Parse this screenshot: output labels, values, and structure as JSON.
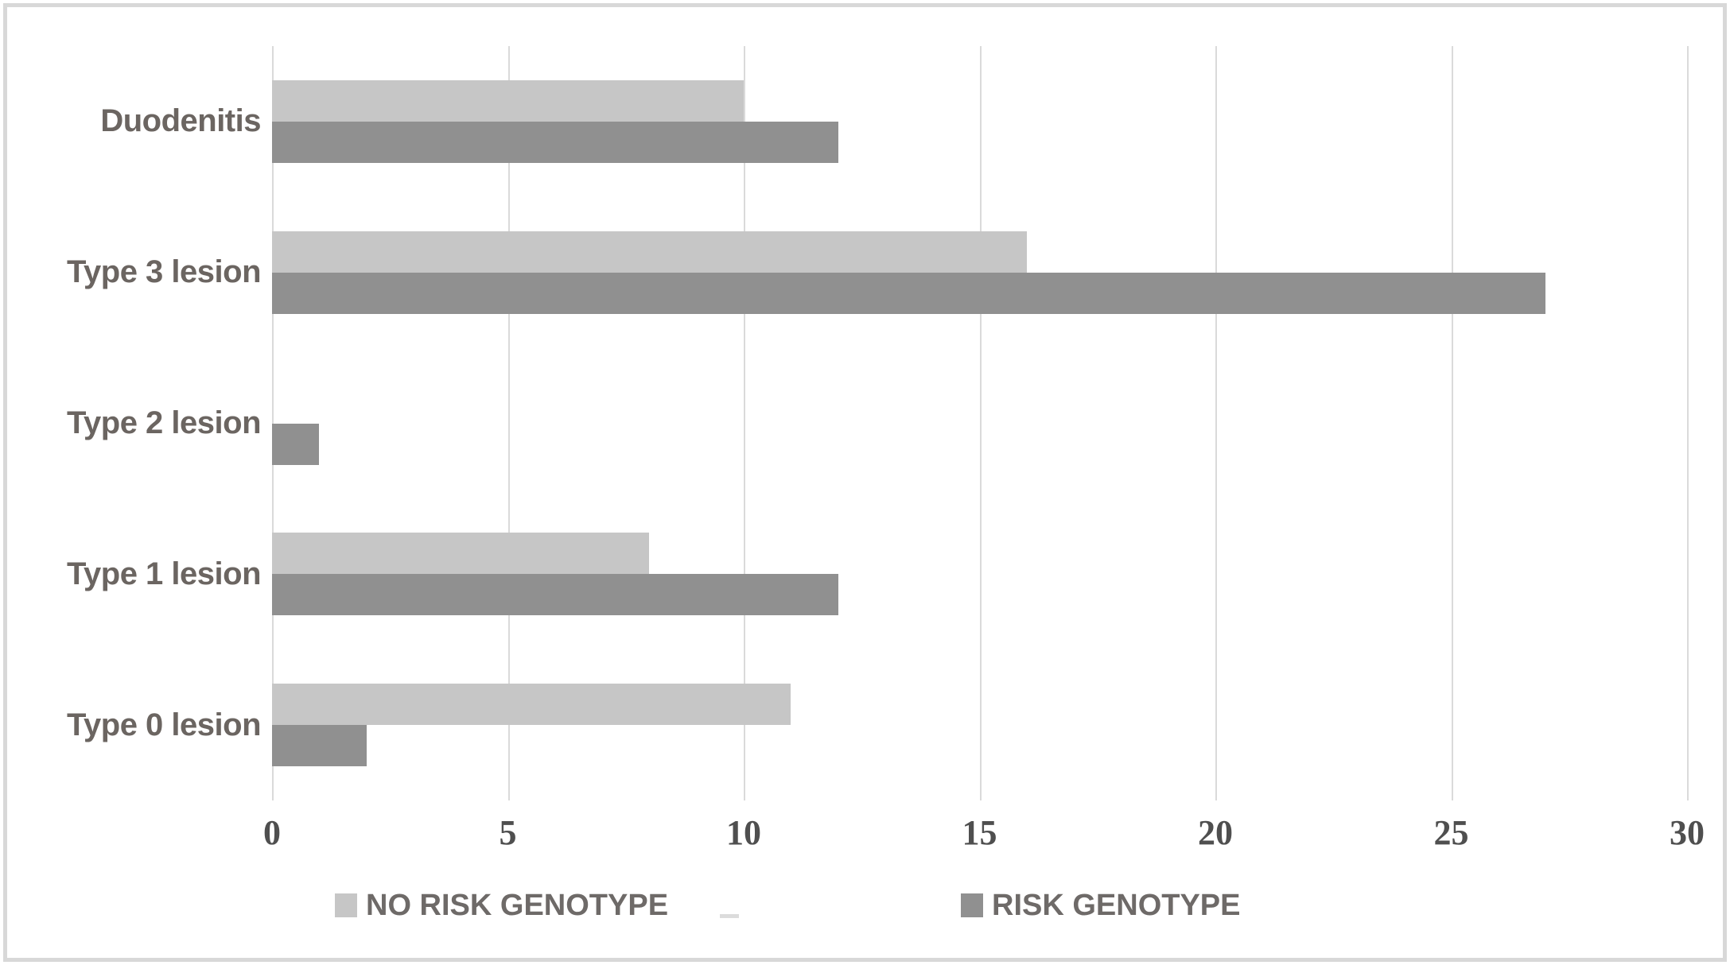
{
  "chart_data": {
    "type": "bar",
    "orientation": "horizontal",
    "categories": [
      "Duodenitis",
      "Type 3 lesion",
      "Type 2 lesion",
      "Type 1 lesion",
      "Type 0 lesion"
    ],
    "series": [
      {
        "name": "NO RISK GENOTYPE",
        "color": "#c6c6c6",
        "values": [
          10,
          16,
          0,
          8,
          11
        ]
      },
      {
        "name": "RISK GENOTYPE",
        "color": "#909090",
        "values": [
          12,
          27,
          1,
          12,
          2
        ]
      }
    ],
    "x_ticks": [
      "0",
      "5",
      "10",
      "15",
      "20",
      "25",
      "30"
    ],
    "xlim": [
      0,
      30
    ],
    "grid": true,
    "legend_position": "bottom"
  },
  "colors": {
    "grid": "#dadada",
    "frame_border": "#d8d8d8",
    "background": "#ffffff",
    "category_label": "#6b6561",
    "tick_label": "#4f4f4f",
    "legend_label": "#6e6a68"
  }
}
